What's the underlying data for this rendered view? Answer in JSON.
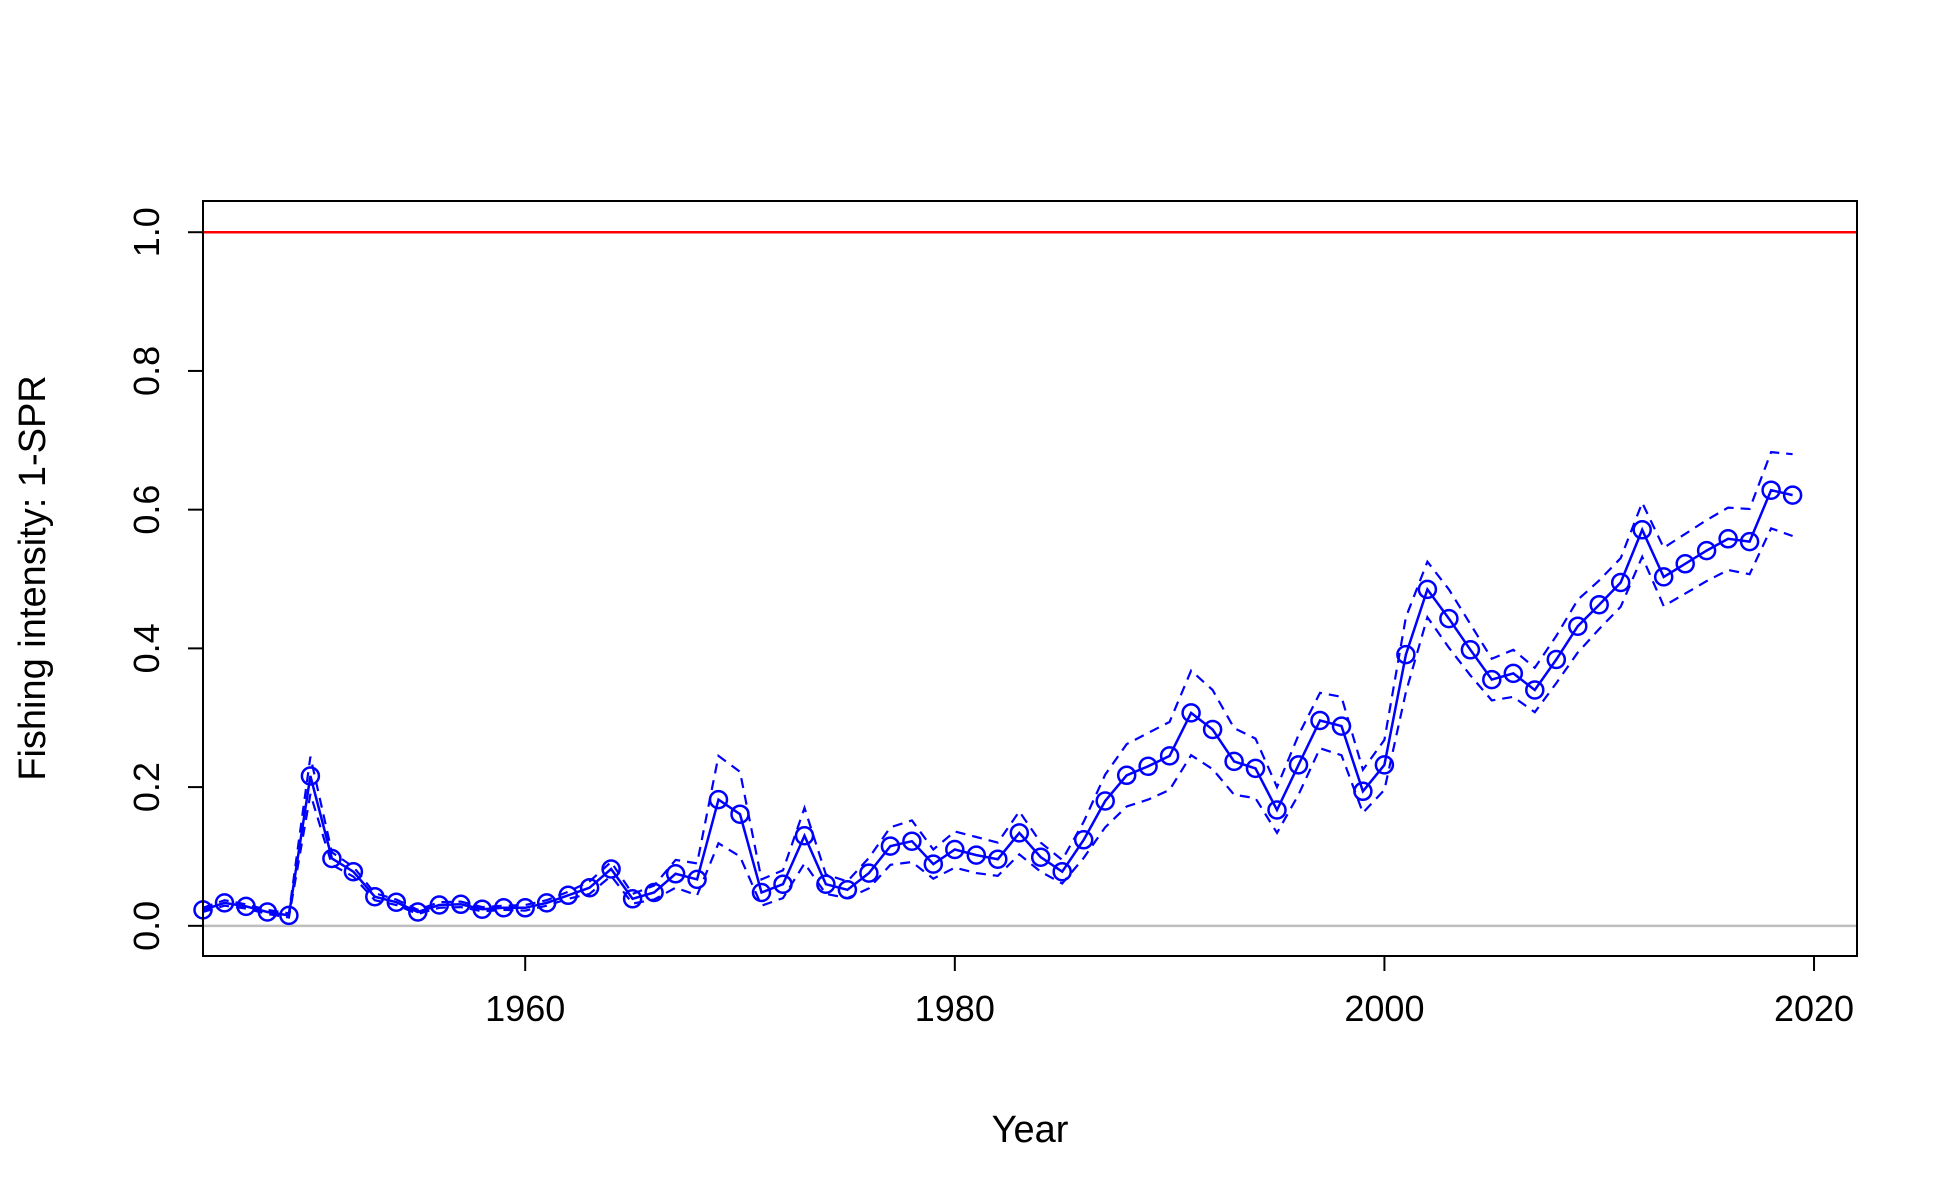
{
  "chart_data": {
    "type": "line",
    "title": "",
    "xlabel": "Year",
    "ylabel": "Fishing intensity: 1-SPR",
    "xlim": [
      1945,
      2019
    ],
    "ylim": [
      0,
      1.0
    ],
    "x_ticks": [
      1960,
      1980,
      2000,
      2020
    ],
    "y_ticks": [
      "0.0",
      "0.2",
      "0.4",
      "0.6",
      "0.8",
      "1.0"
    ],
    "reference_lines": [
      {
        "y": 1.0,
        "color": "#ff0000"
      },
      {
        "y": 0.0,
        "color": "#bebebe"
      }
    ],
    "series_color": "#0000ff",
    "grid": false,
    "legend": "none",
    "x": [
      1945,
      1946,
      1947,
      1948,
      1949,
      1950,
      1951,
      1952,
      1953,
      1954,
      1955,
      1956,
      1957,
      1958,
      1959,
      1960,
      1961,
      1962,
      1963,
      1964,
      1965,
      1966,
      1967,
      1968,
      1969,
      1970,
      1971,
      1972,
      1973,
      1974,
      1975,
      1976,
      1977,
      1978,
      1979,
      1980,
      1981,
      1982,
      1983,
      1984,
      1985,
      1986,
      1987,
      1988,
      1989,
      1990,
      1991,
      1992,
      1993,
      1994,
      1995,
      1996,
      1997,
      1998,
      1999,
      2000,
      2001,
      2002,
      2003,
      2004,
      2005,
      2006,
      2007,
      2008,
      2009,
      2010,
      2011,
      2012,
      2013,
      2014,
      2015,
      2016,
      2017,
      2018,
      2019
    ],
    "series": [
      {
        "role": "estimate",
        "values": [
          0.023,
          0.033,
          0.028,
          0.02,
          0.015,
          0.216,
          0.097,
          0.078,
          0.042,
          0.034,
          0.02,
          0.03,
          0.031,
          0.024,
          0.026,
          0.026,
          0.033,
          0.044,
          0.055,
          0.082,
          0.039,
          0.048,
          0.075,
          0.067,
          0.182,
          0.161,
          0.048,
          0.06,
          0.13,
          0.06,
          0.052,
          0.076,
          0.115,
          0.122,
          0.089,
          0.11,
          0.102,
          0.096,
          0.134,
          0.099,
          0.078,
          0.124,
          0.18,
          0.217,
          0.23,
          0.245,
          0.307,
          0.283,
          0.237,
          0.227,
          0.167,
          0.232,
          0.296,
          0.288,
          0.194,
          0.232,
          0.391,
          0.485,
          0.443,
          0.398,
          0.355,
          0.364,
          0.34,
          0.384,
          0.432,
          0.463,
          0.495,
          0.571,
          0.503,
          0.522,
          0.541,
          0.558,
          0.554,
          0.628,
          0.621
        ]
      },
      {
        "role": "upper",
        "values": [
          0.026,
          0.037,
          0.031,
          0.023,
          0.018,
          0.244,
          0.106,
          0.085,
          0.047,
          0.038,
          0.023,
          0.034,
          0.035,
          0.027,
          0.029,
          0.03,
          0.037,
          0.049,
          0.064,
          0.092,
          0.046,
          0.058,
          0.095,
          0.09,
          0.245,
          0.222,
          0.067,
          0.08,
          0.17,
          0.074,
          0.064,
          0.098,
          0.142,
          0.152,
          0.11,
          0.136,
          0.128,
          0.12,
          0.165,
          0.12,
          0.095,
          0.15,
          0.218,
          0.262,
          0.278,
          0.294,
          0.368,
          0.34,
          0.285,
          0.27,
          0.2,
          0.275,
          0.336,
          0.33,
          0.225,
          0.268,
          0.445,
          0.525,
          0.485,
          0.435,
          0.385,
          0.398,
          0.372,
          0.418,
          0.47,
          0.498,
          0.53,
          0.61,
          0.545,
          0.565,
          0.585,
          0.603,
          0.601,
          0.683,
          0.68
        ]
      },
      {
        "role": "lower",
        "values": [
          0.02,
          0.029,
          0.025,
          0.017,
          0.012,
          0.19,
          0.088,
          0.071,
          0.037,
          0.03,
          0.017,
          0.026,
          0.027,
          0.021,
          0.023,
          0.022,
          0.029,
          0.039,
          0.046,
          0.072,
          0.032,
          0.038,
          0.055,
          0.044,
          0.119,
          0.1,
          0.029,
          0.04,
          0.09,
          0.046,
          0.04,
          0.054,
          0.088,
          0.092,
          0.068,
          0.084,
          0.076,
          0.072,
          0.103,
          0.078,
          0.061,
          0.098,
          0.142,
          0.172,
          0.182,
          0.196,
          0.246,
          0.226,
          0.189,
          0.184,
          0.134,
          0.189,
          0.256,
          0.246,
          0.163,
          0.196,
          0.337,
          0.445,
          0.401,
          0.361,
          0.325,
          0.33,
          0.308,
          0.35,
          0.394,
          0.428,
          0.46,
          0.532,
          0.461,
          0.479,
          0.497,
          0.513,
          0.507,
          0.573,
          0.562
        ]
      }
    ]
  }
}
